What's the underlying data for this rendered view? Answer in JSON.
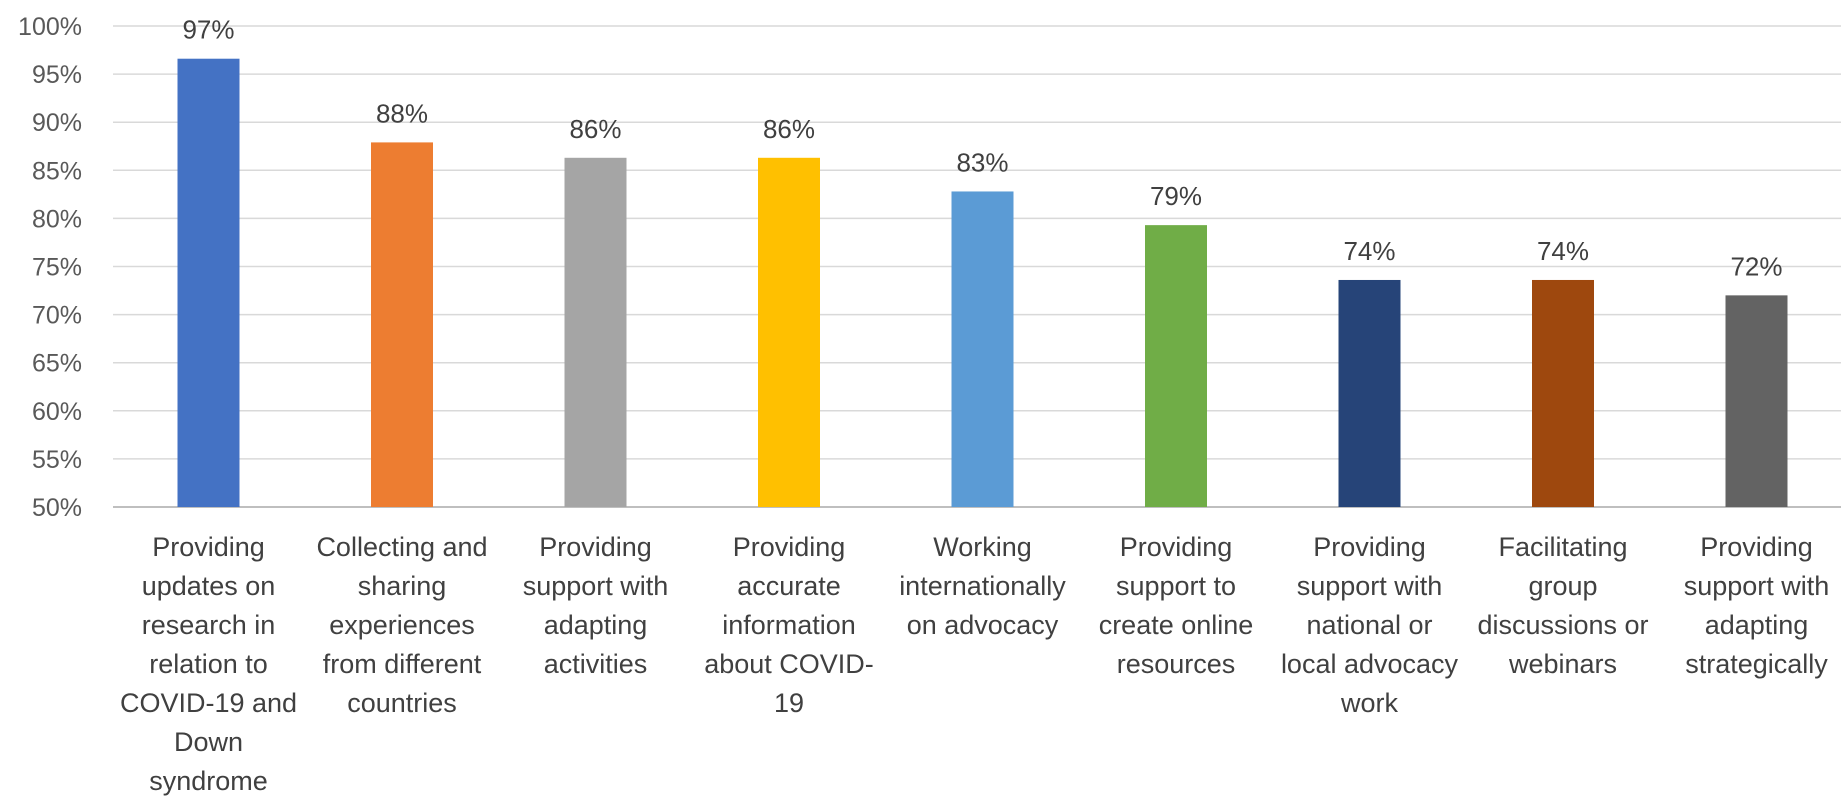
{
  "chart_data": {
    "type": "bar",
    "title": "",
    "xlabel": "",
    "ylabel": "",
    "ylim": [
      50,
      100
    ],
    "y_ticks": [
      {
        "value": 100,
        "label": "100%"
      },
      {
        "value": 95,
        "label": "95%"
      },
      {
        "value": 90,
        "label": "90%"
      },
      {
        "value": 85,
        "label": "85%"
      },
      {
        "value": 80,
        "label": "80%"
      },
      {
        "value": 75,
        "label": "75%"
      },
      {
        "value": 70,
        "label": "70%"
      },
      {
        "value": 65,
        "label": "65%"
      },
      {
        "value": 60,
        "label": "60%"
      },
      {
        "value": 55,
        "label": "55%"
      },
      {
        "value": 50,
        "label": "50%"
      }
    ],
    "grid": true,
    "legend": "none",
    "categories": [
      "Providing updates on research in relation to COVID-19 and Down syndrome",
      "Collecting and sharing experiences from different countries",
      "Providing support with adapting activities",
      "Providing accurate information about COVID-19",
      "Working internationally on advocacy",
      "Providing support to create online resources",
      "Providing support with national or local advocacy work",
      "Facilitating group discussions or webinars",
      "Providing support with adapting strategically"
    ],
    "category_lines": [
      [
        "Providing",
        "updates on",
        "research in",
        "relation to",
        "COVID-19 and",
        "Down",
        "syndrome"
      ],
      [
        "Collecting and",
        "sharing",
        "experiences",
        "from different",
        "countries"
      ],
      [
        "Providing",
        "support with",
        "adapting",
        "activities"
      ],
      [
        "Providing",
        "accurate",
        "information",
        "about COVID-",
        "19"
      ],
      [
        "Working",
        "internationally",
        "on advocacy"
      ],
      [
        "Providing",
        "support to",
        "create online",
        "resources"
      ],
      [
        "Providing",
        "support with",
        "national or",
        "local advocacy",
        "work"
      ],
      [
        "Facilitating",
        "group",
        "discussions or",
        "webinars"
      ],
      [
        "Providing",
        "support with",
        "adapting",
        "strategically"
      ]
    ],
    "values": [
      96.6,
      87.9,
      86.3,
      86.3,
      82.8,
      79.3,
      73.6,
      73.6,
      72.0
    ],
    "data_labels": [
      "97%",
      "88%",
      "86%",
      "86%",
      "83%",
      "79%",
      "74%",
      "74%",
      "72%"
    ],
    "colors": [
      "#4472C4",
      "#ED7D31",
      "#A5A5A5",
      "#FFC000",
      "#5B9BD5",
      "#70AD47",
      "#264478",
      "#9E480E",
      "#636363"
    ]
  }
}
